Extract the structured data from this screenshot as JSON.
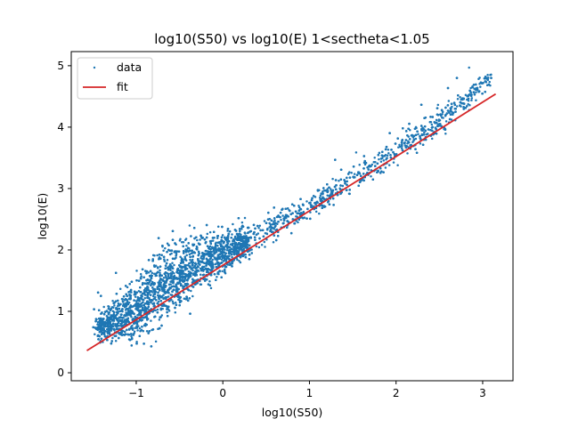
{
  "chart_data": {
    "type": "scatter",
    "title": "log10(S50) vs log10(E) 1<sectheta<1.05",
    "xlabel": "log10(S50)",
    "ylabel": "log10(E)",
    "xlim": [
      -1.75,
      3.35
    ],
    "ylim": [
      -0.13,
      5.23
    ],
    "xticks": [
      -1,
      0,
      1,
      2,
      3
    ],
    "yticks": [
      0,
      1,
      2,
      3,
      4,
      5
    ],
    "xtick_labels": [
      "−1",
      "0",
      "1",
      "2",
      "3"
    ],
    "ytick_labels": [
      "0",
      "1",
      "2",
      "3",
      "4",
      "5"
    ],
    "grid": false,
    "legend": {
      "placement": "upper-left",
      "entries": [
        "data",
        "fit"
      ]
    },
    "series": [
      {
        "name": "data",
        "kind": "scatter",
        "color": "#1f77b4",
        "density_band": [
          {
            "x": -1.5,
            "ylo": 0.55,
            "yhi": 1.0,
            "yc": 0.75
          },
          {
            "x": -1.3,
            "ylo": 0.4,
            "yhi": 1.25,
            "yc": 0.8
          },
          {
            "x": -1.1,
            "ylo": 0.3,
            "yhi": 1.5,
            "yc": 0.95
          },
          {
            "x": -0.9,
            "ylo": 0.35,
            "yhi": 2.0,
            "yc": 1.15
          },
          {
            "x": -0.7,
            "ylo": 0.55,
            "yhi": 2.35,
            "yc": 1.4
          },
          {
            "x": -0.5,
            "ylo": 0.9,
            "yhi": 2.5,
            "yc": 1.6
          },
          {
            "x": -0.3,
            "ylo": 1.2,
            "yhi": 2.55,
            "yc": 1.75
          },
          {
            "x": 0.0,
            "ylo": 1.5,
            "yhi": 2.5,
            "yc": 1.95
          },
          {
            "x": 0.3,
            "ylo": 1.8,
            "yhi": 2.6,
            "yc": 2.15
          },
          {
            "x": 0.6,
            "ylo": 2.05,
            "yhi": 2.8,
            "yc": 2.4
          },
          {
            "x": 1.0,
            "ylo": 2.4,
            "yhi": 3.05,
            "yc": 2.7
          },
          {
            "x": 1.5,
            "ylo": 2.85,
            "yhi": 3.45,
            "yc": 3.15
          },
          {
            "x": 2.0,
            "ylo": 3.3,
            "yhi": 3.95,
            "yc": 3.6
          },
          {
            "x": 2.5,
            "ylo": 3.85,
            "yhi": 4.45,
            "yc": 4.1
          },
          {
            "x": 2.8,
            "ylo": 4.2,
            "yhi": 4.75,
            "yc": 4.45
          },
          {
            "x": 3.1,
            "ylo": 4.6,
            "yhi": 5.0,
            "yc": 4.8
          }
        ]
      },
      {
        "name": "fit",
        "kind": "line",
        "color": "#d62728",
        "x": [
          -1.57,
          3.15
        ],
        "y": [
          0.36,
          4.54
        ]
      }
    ]
  }
}
